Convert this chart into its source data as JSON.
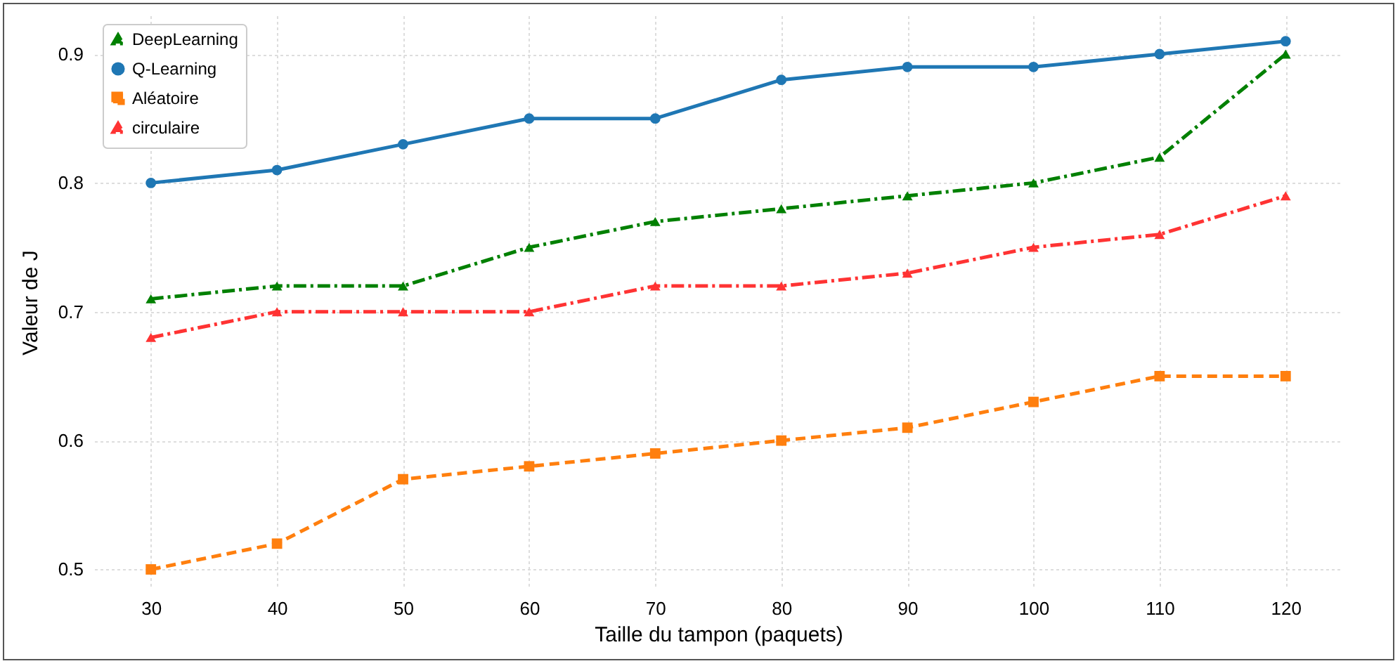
{
  "chart_data": {
    "type": "line",
    "xlabel": "Taille du tampon (paquets)",
    "ylabel": "Valeur de J",
    "x": [
      30,
      40,
      50,
      60,
      70,
      80,
      90,
      100,
      110,
      120
    ],
    "series": [
      {
        "name": "DeepLearning",
        "color": "#008000",
        "marker": "triangle",
        "line_style": "dashdot",
        "values": [
          0.71,
          0.72,
          0.72,
          0.75,
          0.77,
          0.78,
          0.79,
          0.8,
          0.82,
          0.9
        ]
      },
      {
        "name": "Q-Learning",
        "color": "#1f77b4",
        "marker": "circle",
        "line_style": "solid",
        "values": [
          0.8,
          0.81,
          0.83,
          0.85,
          0.85,
          0.88,
          0.89,
          0.89,
          0.9,
          0.91
        ]
      },
      {
        "name": "Aléatoire",
        "color": "#ff7f0e",
        "marker": "square",
        "line_style": "dashed",
        "values": [
          0.5,
          0.52,
          0.57,
          0.58,
          0.59,
          0.6,
          0.61,
          0.63,
          0.65,
          0.65
        ]
      },
      {
        "name": "circulaire",
        "color": "#ff3333",
        "marker": "triangle",
        "line_style": "dashdot",
        "values": [
          0.68,
          0.7,
          0.7,
          0.7,
          0.72,
          0.72,
          0.73,
          0.75,
          0.76,
          0.79
        ]
      }
    ],
    "xlim": [
      25.5,
      124.5
    ],
    "xticks": [
      30,
      40,
      50,
      60,
      70,
      80,
      90,
      100,
      110,
      120
    ],
    "ylim": [
      0.485,
      0.93
    ],
    "yticks": [
      0.5,
      0.6,
      0.7,
      0.8,
      0.9
    ],
    "grid": true,
    "legend": "top left"
  }
}
